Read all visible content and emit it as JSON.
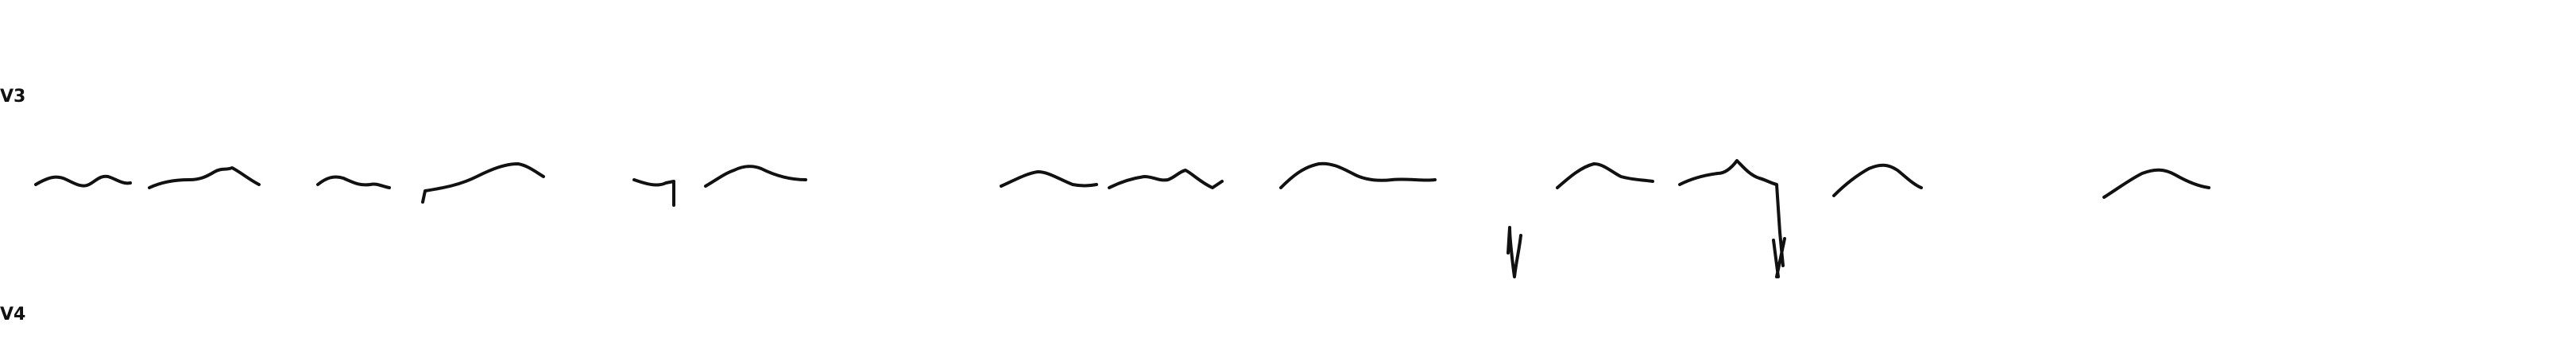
{
  "strip": {
    "leads": [
      {
        "label": "V3",
        "position": "upper-left"
      },
      {
        "label": "V4",
        "position": "lower-left"
      }
    ],
    "colors": {
      "background": "#ffffff",
      "ink": "#111111"
    }
  }
}
